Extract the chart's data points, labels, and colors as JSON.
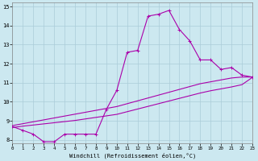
{
  "xlabel": "Windchill (Refroidissement éolien,°C)",
  "xlim": [
    0,
    23
  ],
  "ylim": [
    7.8,
    15.2
  ],
  "xticks": [
    0,
    1,
    2,
    3,
    4,
    5,
    6,
    7,
    8,
    9,
    10,
    11,
    12,
    13,
    14,
    15,
    16,
    17,
    18,
    19,
    20,
    21,
    22,
    23
  ],
  "yticks": [
    8,
    9,
    10,
    11,
    12,
    13,
    14,
    15
  ],
  "bg_color": "#cce8f0",
  "line_color": "#aa00aa",
  "grid_color": "#aaccd8",
  "curve1_x": [
    0,
    1,
    2,
    3,
    4,
    5,
    6,
    7,
    8,
    9,
    10,
    11,
    12,
    13,
    14,
    15,
    16,
    17,
    18,
    19,
    20,
    21,
    22,
    23
  ],
  "curve1_y": [
    8.7,
    8.5,
    8.3,
    7.9,
    7.9,
    8.3,
    8.3,
    8.3,
    8.3,
    9.6,
    10.6,
    12.6,
    12.7,
    14.5,
    14.6,
    14.8,
    13.8,
    13.2,
    12.2,
    12.2,
    11.7,
    11.8,
    11.4,
    11.3
  ],
  "curve2_x": [
    0,
    23
  ],
  "curve2_y": [
    8.7,
    11.3
  ],
  "curve3_x": [
    0,
    23
  ],
  "curve3_y": [
    8.7,
    11.3
  ],
  "curve2_full_x": [
    0,
    1,
    2,
    3,
    4,
    5,
    6,
    7,
    8,
    9,
    10,
    11,
    12,
    13,
    14,
    15,
    16,
    17,
    18,
    19,
    20,
    21,
    22,
    23
  ],
  "curve2_full_y": [
    8.75,
    8.85,
    8.95,
    9.05,
    9.15,
    9.25,
    9.35,
    9.45,
    9.55,
    9.65,
    9.75,
    9.9,
    10.05,
    10.2,
    10.35,
    10.5,
    10.65,
    10.8,
    10.95,
    11.05,
    11.15,
    11.25,
    11.3,
    11.3
  ],
  "curve3_full_y": [
    8.65,
    8.72,
    8.78,
    8.84,
    8.9,
    8.96,
    9.02,
    9.1,
    9.18,
    9.26,
    9.34,
    9.48,
    9.62,
    9.76,
    9.9,
    10.04,
    10.18,
    10.32,
    10.46,
    10.58,
    10.68,
    10.78,
    10.9,
    11.28
  ]
}
